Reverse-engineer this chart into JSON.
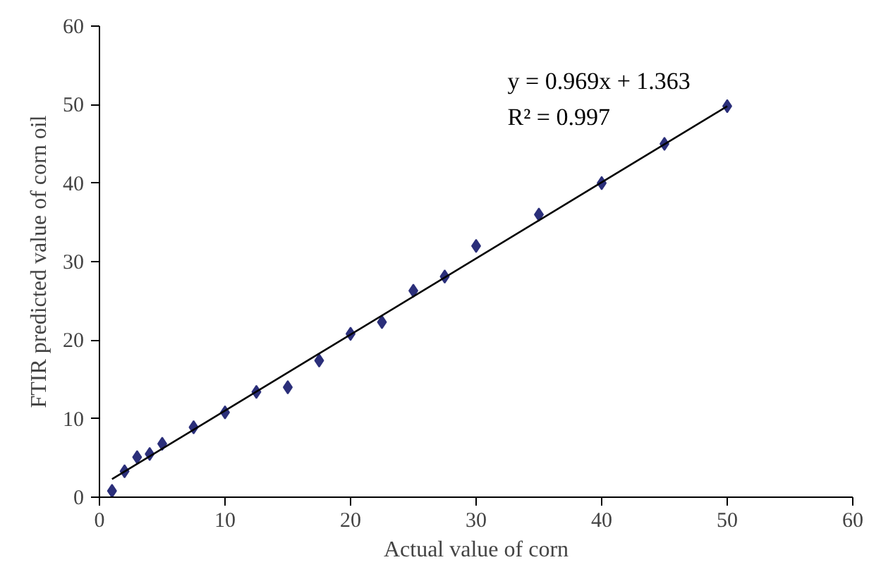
{
  "chart_data": {
    "type": "scatter",
    "xlabel": "Actual value of corn",
    "ylabel": "FTIR predicted value of corn oil",
    "x": [
      1,
      2,
      3,
      4,
      5,
      7.5,
      10,
      12.5,
      15,
      17.5,
      20,
      22.5,
      25,
      27.5,
      30,
      35,
      40,
      45,
      50
    ],
    "series": [
      {
        "color": "#2b2f7a",
        "marker": "diamond",
        "values": [
          0.8,
          3.3,
          5.1,
          5.5,
          6.8,
          8.9,
          10.8,
          13.4,
          14.0,
          17.4,
          20.8,
          22.3,
          26.3,
          28.1,
          32.0,
          36.0,
          40.0,
          45.0,
          49.8
        ]
      },
      {
        "type": "line",
        "color": "#000000",
        "x": [
          1,
          50
        ],
        "values": [
          2.3,
          49.8
        ]
      }
    ],
    "annotations": [
      "y = 0.969x + 1.363",
      "R² = 0.997"
    ],
    "xlim": [
      0,
      60
    ],
    "ylim": [
      0,
      60
    ],
    "xticks": [
      0,
      10,
      20,
      30,
      40,
      50,
      60
    ],
    "yticks": [
      0,
      10,
      20,
      30,
      40,
      50,
      60
    ],
    "grid": false
  }
}
